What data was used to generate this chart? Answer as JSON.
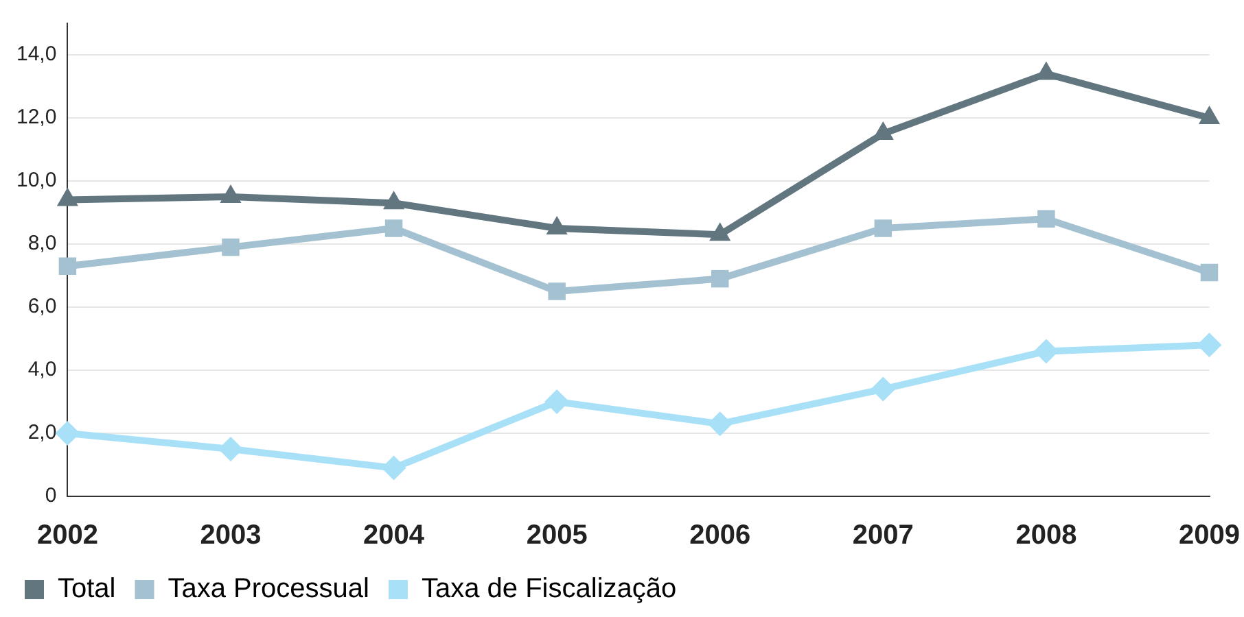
{
  "chart_data": {
    "type": "line",
    "categories": [
      "2002",
      "2003",
      "2004",
      "2005",
      "2006",
      "2007",
      "2008",
      "2009"
    ],
    "series": [
      {
        "name": "Total",
        "color": "#627680",
        "marker": "triangle",
        "values": [
          9.4,
          9.5,
          9.3,
          8.5,
          8.3,
          11.5,
          13.4,
          12.0
        ]
      },
      {
        "name": "Taxa Processual",
        "color": "#a3c1d0",
        "marker": "square",
        "values": [
          7.3,
          7.9,
          8.5,
          6.5,
          6.9,
          8.5,
          8.8,
          7.1
        ]
      },
      {
        "name": "Taxa de Fiscalização",
        "color": "#a8e0f8",
        "marker": "diamond",
        "values": [
          2.0,
          1.5,
          0.9,
          3.0,
          2.3,
          3.4,
          4.6,
          4.8
        ]
      }
    ],
    "ylim": [
      0,
      15
    ],
    "yticks": [
      {
        "value": 0,
        "label": "0"
      },
      {
        "value": 2,
        "label": "2,0"
      },
      {
        "value": 4,
        "label": "4,0"
      },
      {
        "value": 6,
        "label": "6,0"
      },
      {
        "value": 8,
        "label": "8,0"
      },
      {
        "value": 10,
        "label": "10,0"
      },
      {
        "value": 12,
        "label": "12,0"
      },
      {
        "value": 14,
        "label": "14,0"
      }
    ],
    "grid": "y",
    "legend": "bottom",
    "line_style": "solid"
  }
}
